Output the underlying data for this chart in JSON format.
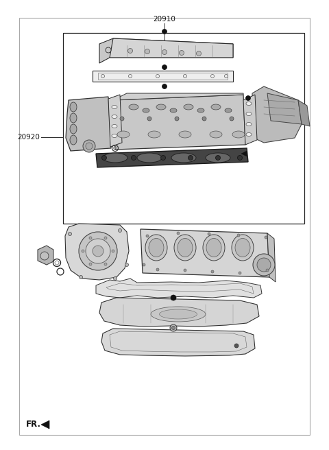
{
  "bg_color": "#ffffff",
  "label_20910": "20910",
  "label_20920": "20920",
  "label_fr": "FR.",
  "text_color": "#1a1a1a",
  "line_color": "#2a2a2a",
  "light_gray": "#c8c8c8",
  "mid_gray": "#888888",
  "dark_gray": "#333333",
  "very_dark": "#111111",
  "part_fill": "#e8e8e8",
  "gasket_dark": "#3a3a3a"
}
